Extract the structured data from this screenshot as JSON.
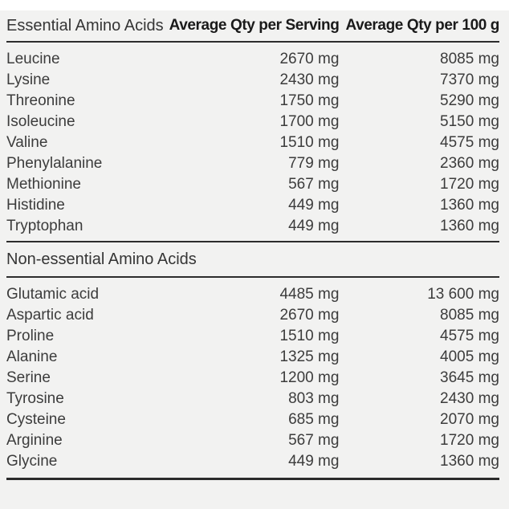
{
  "colors": {
    "page_background": "#ffffff",
    "panel_background": "#f2f2f1",
    "body_text": "#3c3c3c",
    "header_bold_text": "#1a1a1a",
    "rule_line": "#2d2d2d"
  },
  "header": {
    "essential_title": "Essential Amino Acids",
    "col_serving": "Average Qty per Serving",
    "col_100g": "Average Qty per 100 g"
  },
  "essential": {
    "rows": [
      {
        "name": "Leucine",
        "per_serving": "2670 mg",
        "per_100g": "8085 mg"
      },
      {
        "name": "Lysine",
        "per_serving": "2430 mg",
        "per_100g": "7370 mg"
      },
      {
        "name": "Threonine",
        "per_serving": "1750 mg",
        "per_100g": "5290 mg"
      },
      {
        "name": "Isoleucine",
        "per_serving": "1700 mg",
        "per_100g": "5150 mg"
      },
      {
        "name": "Valine",
        "per_serving": "1510 mg",
        "per_100g": "4575 mg"
      },
      {
        "name": "Phenylalanine",
        "per_serving": "779 mg",
        "per_100g": "2360 mg"
      },
      {
        "name": "Methionine",
        "per_serving": "567 mg",
        "per_100g": "1720 mg"
      },
      {
        "name": "Histidine",
        "per_serving": "449 mg",
        "per_100g": "1360 mg"
      },
      {
        "name": "Tryptophan",
        "per_serving": "449 mg",
        "per_100g": "1360 mg"
      }
    ]
  },
  "non_essential": {
    "title": "Non-essential Amino Acids",
    "rows": [
      {
        "name": "Glutamic acid",
        "per_serving": "4485 mg",
        "per_100g": "13 600 mg"
      },
      {
        "name": "Aspartic acid",
        "per_serving": "2670 mg",
        "per_100g": "8085 mg"
      },
      {
        "name": "Proline",
        "per_serving": "1510 mg",
        "per_100g": "4575 mg"
      },
      {
        "name": "Alanine",
        "per_serving": "1325 mg",
        "per_100g": "4005 mg"
      },
      {
        "name": "Serine",
        "per_serving": "1200 mg",
        "per_100g": "3645 mg"
      },
      {
        "name": "Tyrosine",
        "per_serving": "803 mg",
        "per_100g": "2430 mg"
      },
      {
        "name": "Cysteine",
        "per_serving": "685 mg",
        "per_100g": "2070 mg"
      },
      {
        "name": "Arginine",
        "per_serving": "567 mg",
        "per_100g": "1720 mg"
      },
      {
        "name": "Glycine",
        "per_serving": "449 mg",
        "per_100g": "1360 mg"
      }
    ]
  }
}
